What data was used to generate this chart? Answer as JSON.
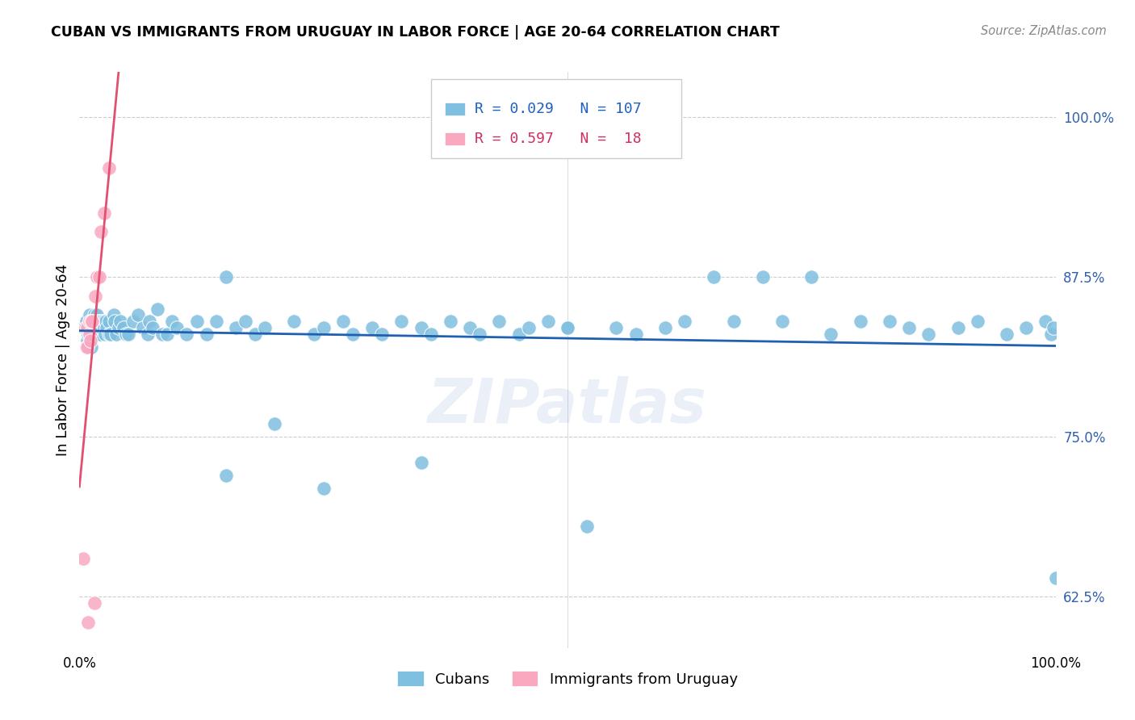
{
  "title": "CUBAN VS IMMIGRANTS FROM URUGUAY IN LABOR FORCE | AGE 20-64 CORRELATION CHART",
  "source": "Source: ZipAtlas.com",
  "ylabel": "In Labor Force | Age 20-64",
  "watermark": "ZIPatlas",
  "xlim": [
    0.0,
    1.0
  ],
  "ylim": [
    0.585,
    1.035
  ],
  "ytick_positions": [
    0.625,
    0.75,
    0.875,
    1.0
  ],
  "yticklabels": [
    "62.5%",
    "75.0%",
    "87.5%",
    "100.0%"
  ],
  "cuban_color": "#7fbfdf",
  "uruguay_color": "#f9a8c0",
  "trendline_cuban_color": "#2060b0",
  "trendline_uruguay_color": "#e05070",
  "R_cuban": 0.029,
  "N_cuban": 107,
  "R_uruguay": 0.597,
  "N_uruguay": 18,
  "cuban_x": [
    0.005,
    0.007,
    0.008,
    0.009,
    0.01,
    0.01,
    0.01,
    0.01,
    0.012,
    0.013,
    0.014,
    0.015,
    0.015,
    0.015,
    0.016,
    0.017,
    0.018,
    0.018,
    0.019,
    0.02,
    0.02,
    0.02,
    0.021,
    0.022,
    0.023,
    0.025,
    0.025,
    0.026,
    0.027,
    0.028,
    0.03,
    0.03,
    0.032,
    0.035,
    0.036,
    0.038,
    0.04,
    0.042,
    0.045,
    0.048,
    0.05,
    0.055,
    0.06,
    0.065,
    0.07,
    0.072,
    0.075,
    0.08,
    0.085,
    0.09,
    0.095,
    0.1,
    0.11,
    0.12,
    0.13,
    0.14,
    0.15,
    0.16,
    0.17,
    0.18,
    0.19,
    0.2,
    0.22,
    0.24,
    0.25,
    0.27,
    0.28,
    0.3,
    0.31,
    0.33,
    0.35,
    0.36,
    0.38,
    0.4,
    0.41,
    0.43,
    0.45,
    0.46,
    0.48,
    0.5,
    0.52,
    0.55,
    0.57,
    0.6,
    0.62,
    0.65,
    0.67,
    0.7,
    0.72,
    0.75,
    0.77,
    0.8,
    0.83,
    0.85,
    0.87,
    0.9,
    0.92,
    0.95,
    0.97,
    0.99,
    0.995,
    0.998,
    1.0,
    0.15,
    0.25,
    0.35,
    0.5
  ],
  "cuban_y": [
    0.835,
    0.84,
    0.825,
    0.83,
    0.84,
    0.845,
    0.83,
    0.835,
    0.82,
    0.83,
    0.835,
    0.84,
    0.83,
    0.845,
    0.84,
    0.83,
    0.845,
    0.83,
    0.84,
    0.835,
    0.83,
    0.84,
    0.83,
    0.835,
    0.84,
    0.84,
    0.835,
    0.83,
    0.84,
    0.835,
    0.84,
    0.83,
    0.83,
    0.845,
    0.84,
    0.83,
    0.835,
    0.84,
    0.835,
    0.83,
    0.83,
    0.84,
    0.845,
    0.835,
    0.83,
    0.84,
    0.835,
    0.85,
    0.83,
    0.83,
    0.84,
    0.835,
    0.83,
    0.84,
    0.83,
    0.84,
    0.875,
    0.835,
    0.84,
    0.83,
    0.835,
    0.76,
    0.84,
    0.83,
    0.835,
    0.84,
    0.83,
    0.835,
    0.83,
    0.84,
    0.835,
    0.83,
    0.84,
    0.835,
    0.83,
    0.84,
    0.83,
    0.835,
    0.84,
    0.835,
    0.68,
    0.835,
    0.83,
    0.835,
    0.84,
    0.875,
    0.84,
    0.875,
    0.84,
    0.875,
    0.83,
    0.84,
    0.84,
    0.835,
    0.83,
    0.835,
    0.84,
    0.83,
    0.835,
    0.84,
    0.83,
    0.835,
    0.64,
    0.72,
    0.71,
    0.73,
    0.835
  ],
  "uruguay_x": [
    0.004,
    0.006,
    0.007,
    0.008,
    0.008,
    0.009,
    0.01,
    0.01,
    0.011,
    0.012,
    0.013,
    0.015,
    0.016,
    0.018,
    0.02,
    0.022,
    0.025,
    0.03
  ],
  "uruguay_y": [
    0.655,
    0.835,
    0.82,
    0.835,
    0.82,
    0.605,
    0.83,
    0.84,
    0.825,
    0.84,
    0.84,
    0.62,
    0.86,
    0.875,
    0.875,
    0.91,
    0.925,
    0.96
  ]
}
